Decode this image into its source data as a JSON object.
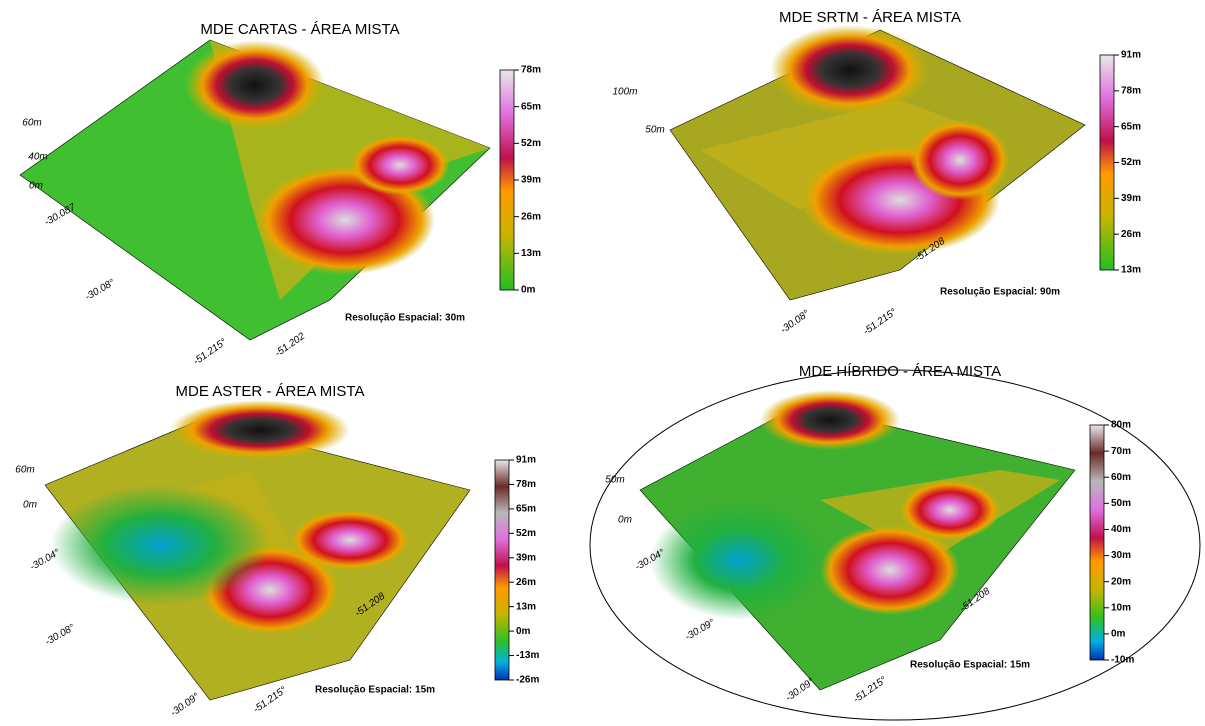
{
  "panels": [
    {
      "title": "MDE CARTAS - ÁREA MISTA",
      "colorbar": [
        "78m",
        "65m",
        "52m",
        "39m",
        "26m",
        "13m",
        "0m"
      ],
      "resolution": "Resolução Espacial: 30m",
      "axis_labels": [
        "60m",
        "40m",
        "0m",
        "-30.087",
        "-30.08°",
        "-51.215°",
        "-51.202"
      ]
    },
    {
      "title": "MDE SRTM - ÁREA MISTA",
      "colorbar": [
        "91m",
        "78m",
        "65m",
        "52m",
        "39m",
        "26m",
        "13m"
      ],
      "resolution": "Resolução Espacial: 90m",
      "axis_labels": [
        "100m",
        "50m",
        "-30.08°",
        "-51.215°",
        "-51.208"
      ]
    },
    {
      "title": "MDE ASTER - ÁREA MISTA",
      "colorbar": [
        "91m",
        "78m",
        "65m",
        "52m",
        "39m",
        "26m",
        "13m",
        "0m",
        "-13m",
        "-26m"
      ],
      "resolution": "Resolução Espacial: 15m",
      "axis_labels": [
        "60m",
        "0m",
        "-30.04°",
        "-30.08°",
        "-30.09°",
        "-51.215°",
        "-51.208"
      ]
    },
    {
      "title": "MDE HÍBRIDO - ÁREA MISTA",
      "colorbar": [
        "80m",
        "70m",
        "60m",
        "50m",
        "40m",
        "30m",
        "20m",
        "10m",
        "0m",
        "-10m"
      ],
      "resolution": "Resolução Espacial: 15m",
      "axis_labels": [
        "50m",
        "0m",
        "-30.04°",
        "-30.09°",
        "-30.09°",
        "-51.215°",
        "-51.208"
      ]
    }
  ]
}
